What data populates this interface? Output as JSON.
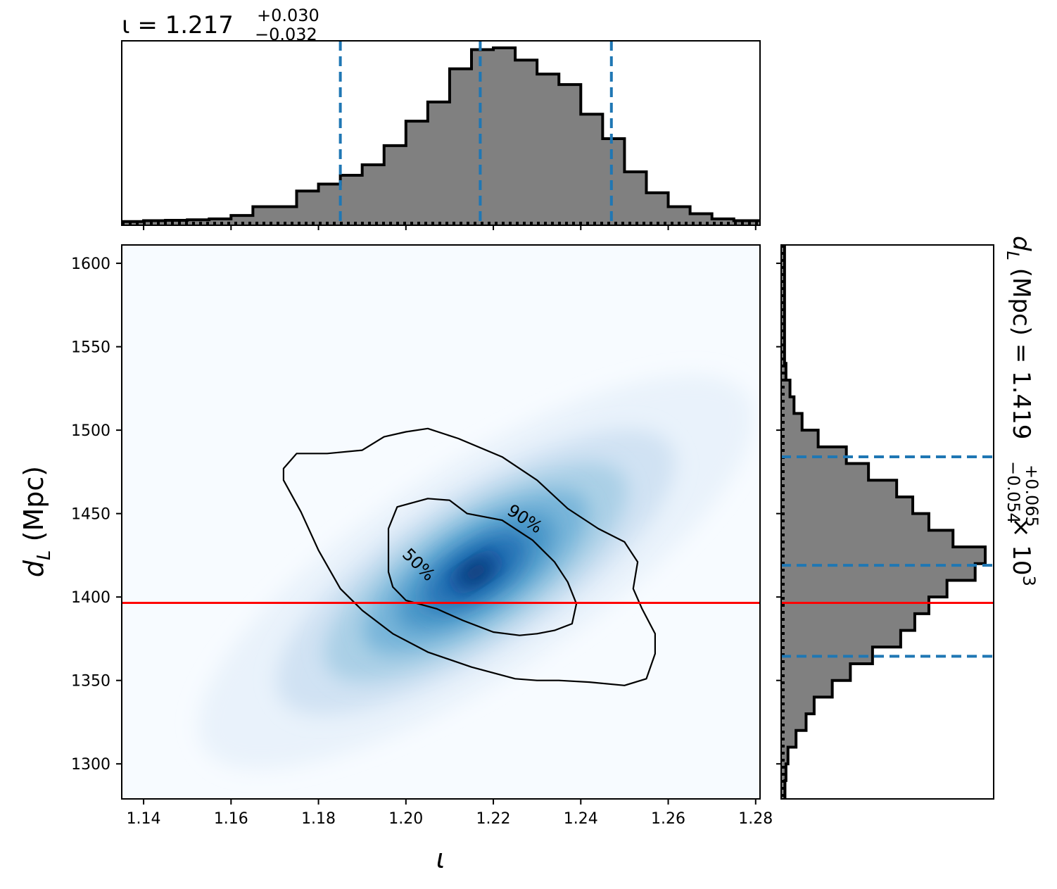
{
  "chart_data": {
    "type": "corner",
    "panels": {
      "top_histogram": {
        "parameter_symbol": "ι",
        "title": {
          "prefix": "ι = 1.217",
          "upper": "+0.030",
          "lower": "−0.032"
        },
        "median": 1.217,
        "credible_interval": [
          1.185,
          1.247
        ],
        "bin_edges": [
          1.135,
          1.14,
          1.145,
          1.15,
          1.155,
          1.16,
          1.165,
          1.17,
          1.175,
          1.18,
          1.185,
          1.19,
          1.195,
          1.2,
          1.205,
          1.21,
          1.215,
          1.22,
          1.225,
          1.23,
          1.235,
          1.24,
          1.245,
          1.25,
          1.255,
          1.26,
          1.265,
          1.27,
          1.275,
          1.281
        ],
        "counts": [
          0.005,
          0.01,
          0.012,
          0.015,
          0.02,
          0.04,
          0.09,
          0.09,
          0.18,
          0.22,
          0.27,
          0.33,
          0.44,
          0.58,
          0.69,
          0.88,
          0.99,
          1.0,
          0.93,
          0.85,
          0.79,
          0.62,
          0.48,
          0.29,
          0.17,
          0.09,
          0.05,
          0.02,
          0.01
        ]
      },
      "joint": {
        "xlabel": "ι",
        "ylabel": "d_L (Mpc)",
        "xlim": [
          1.135,
          1.281
        ],
        "ylim": [
          1279,
          1611
        ],
        "xticks": [
          "1.14",
          "1.16",
          "1.18",
          "1.20",
          "1.22",
          "1.24",
          "1.26",
          "1.28"
        ],
        "xtick_values": [
          1.14,
          1.16,
          1.18,
          1.2,
          1.22,
          1.24,
          1.26,
          1.28
        ],
        "yticks": [
          "1300",
          "1350",
          "1400",
          "1450",
          "1500",
          "1550",
          "1600"
        ],
        "ytick_values": [
          1300,
          1350,
          1400,
          1450,
          1500,
          1550,
          1600
        ],
        "density_peak": {
          "x": 1.216,
          "y": 1415
        },
        "injection_value_dL": 1396.5,
        "contours": [
          {
            "label": "50%",
            "points": [
              [
                1.198,
                1454
              ],
              [
                1.205,
                1459
              ],
              [
                1.21,
                1458
              ],
              [
                1.214,
                1450
              ],
              [
                1.222,
                1446
              ],
              [
                1.229,
                1434
              ],
              [
                1.234,
                1421
              ],
              [
                1.237,
                1409
              ],
              [
                1.239,
                1396
              ],
              [
                1.238,
                1384
              ],
              [
                1.234,
                1380
              ],
              [
                1.23,
                1378
              ],
              [
                1.226,
                1377
              ],
              [
                1.22,
                1379
              ],
              [
                1.213,
                1386
              ],
              [
                1.207,
                1393
              ],
              [
                1.2,
                1398
              ],
              [
                1.197,
                1406
              ],
              [
                1.196,
                1415
              ],
              [
                1.196,
                1428
              ],
              [
                1.196,
                1441
              ]
            ]
          },
          {
            "label": "90%",
            "points": [
              [
                1.172,
                1477
              ],
              [
                1.175,
                1486
              ],
              [
                1.182,
                1486
              ],
              [
                1.19,
                1488
              ],
              [
                1.195,
                1496
              ],
              [
                1.2,
                1499
              ],
              [
                1.205,
                1501
              ],
              [
                1.212,
                1495
              ],
              [
                1.222,
                1484
              ],
              [
                1.23,
                1470
              ],
              [
                1.237,
                1453
              ],
              [
                1.244,
                1441
              ],
              [
                1.25,
                1433
              ],
              [
                1.253,
                1421
              ],
              [
                1.252,
                1405
              ],
              [
                1.254,
                1393
              ],
              [
                1.257,
                1378
              ],
              [
                1.257,
                1366
              ],
              [
                1.255,
                1351
              ],
              [
                1.25,
                1347
              ],
              [
                1.242,
                1349
              ],
              [
                1.235,
                1350
              ],
              [
                1.23,
                1350
              ],
              [
                1.225,
                1351
              ],
              [
                1.215,
                1358
              ],
              [
                1.205,
                1367
              ],
              [
                1.197,
                1378
              ],
              [
                1.19,
                1392
              ],
              [
                1.185,
                1405
              ],
              [
                1.18,
                1428
              ],
              [
                1.176,
                1451
              ],
              [
                1.172,
                1470
              ]
            ]
          }
        ]
      },
      "right_histogram": {
        "parameter_symbol": "d_L",
        "title": {
          "prefix": "d",
          "subscript": "L",
          "middle": " (Mpc) = 1.419",
          "upper": "+0.065",
          "lower": "−0.054",
          "suffix": " × 10",
          "exponent": "3"
        },
        "median": 1419,
        "credible_interval": [
          1364.5,
          1484
        ],
        "bin_edges": [
          1279,
          1290,
          1300,
          1310,
          1320,
          1330,
          1340,
          1350,
          1360,
          1370,
          1380,
          1390,
          1400,
          1410,
          1420,
          1430,
          1440,
          1450,
          1460,
          1470,
          1480,
          1490,
          1500,
          1510,
          1520,
          1530,
          1540,
          1611
        ],
        "counts": [
          0.005,
          0.01,
          0.02,
          0.06,
          0.11,
          0.15,
          0.24,
          0.33,
          0.44,
          0.58,
          0.65,
          0.72,
          0.81,
          0.95,
          1.0,
          0.84,
          0.72,
          0.64,
          0.56,
          0.42,
          0.31,
          0.17,
          0.09,
          0.05,
          0.03,
          0.01,
          0.003
        ]
      }
    },
    "colors": {
      "hist_fill": "#808080",
      "hist_edge": "#000000",
      "quantile_lines": "#1f77b4",
      "injection_line": "#ff0000",
      "density_colormap": "Blues"
    },
    "grid": false
  }
}
